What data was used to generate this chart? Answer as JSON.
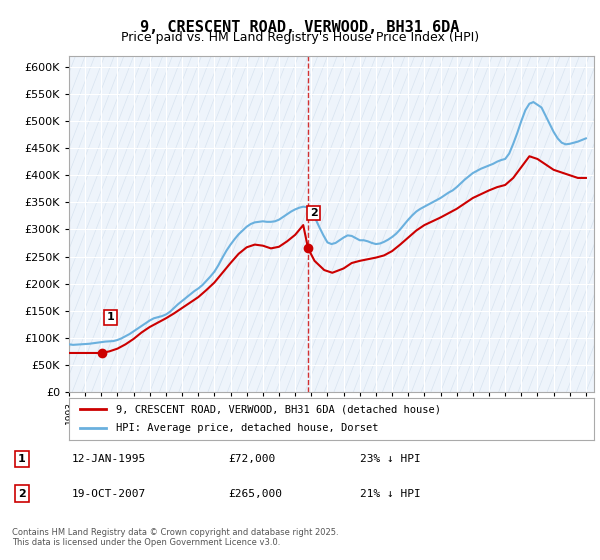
{
  "title_line1": "9, CRESCENT ROAD, VERWOOD, BH31 6DA",
  "title_line2": "Price paid vs. HM Land Registry's House Price Index (HPI)",
  "ylabel": "",
  "ylim": [
    0,
    620000
  ],
  "yticks": [
    0,
    50000,
    100000,
    150000,
    200000,
    250000,
    300000,
    350000,
    400000,
    450000,
    500000,
    550000,
    600000
  ],
  "hpi_color": "#6ab0de",
  "price_color": "#cc0000",
  "dashed_line_color": "#cc0000",
  "background_plot": "#eef4fb",
  "background_fig": "#ffffff",
  "grid_color": "#ffffff",
  "annotation1": {
    "label": "1",
    "date_str": "12-JAN-1995",
    "price": 72000,
    "note": "23% ↓ HPI",
    "x_year": 1995.03
  },
  "annotation2": {
    "label": "2",
    "date_str": "19-OCT-2007",
    "price": 265000,
    "note": "21% ↓ HPI",
    "x_year": 2007.8
  },
  "legend_label_red": "9, CRESCENT ROAD, VERWOOD, BH31 6DA (detached house)",
  "legend_label_blue": "HPI: Average price, detached house, Dorset",
  "footer": "Contains HM Land Registry data © Crown copyright and database right 2025.\nThis data is licensed under the Open Government Licence v3.0.",
  "xmin": 1993.0,
  "xmax": 2025.5,
  "hpi_data_x": [
    1993.0,
    1993.25,
    1993.5,
    1993.75,
    1994.0,
    1994.25,
    1994.5,
    1994.75,
    1995.0,
    1995.25,
    1995.5,
    1995.75,
    1996.0,
    1996.25,
    1996.5,
    1996.75,
    1997.0,
    1997.25,
    1997.5,
    1997.75,
    1998.0,
    1998.25,
    1998.5,
    1998.75,
    1999.0,
    1999.25,
    1999.5,
    1999.75,
    2000.0,
    2000.25,
    2000.5,
    2000.75,
    2001.0,
    2001.25,
    2001.5,
    2001.75,
    2002.0,
    2002.25,
    2002.5,
    2002.75,
    2003.0,
    2003.25,
    2003.5,
    2003.75,
    2004.0,
    2004.25,
    2004.5,
    2004.75,
    2005.0,
    2005.25,
    2005.5,
    2005.75,
    2006.0,
    2006.25,
    2006.5,
    2006.75,
    2007.0,
    2007.25,
    2007.5,
    2007.75,
    2008.0,
    2008.25,
    2008.5,
    2008.75,
    2009.0,
    2009.25,
    2009.5,
    2009.75,
    2010.0,
    2010.25,
    2010.5,
    2010.75,
    2011.0,
    2011.25,
    2011.5,
    2011.75,
    2012.0,
    2012.25,
    2012.5,
    2012.75,
    2013.0,
    2013.25,
    2013.5,
    2013.75,
    2014.0,
    2014.25,
    2014.5,
    2014.75,
    2015.0,
    2015.25,
    2015.5,
    2015.75,
    2016.0,
    2016.25,
    2016.5,
    2016.75,
    2017.0,
    2017.25,
    2017.5,
    2017.75,
    2018.0,
    2018.25,
    2018.5,
    2018.75,
    2019.0,
    2019.25,
    2019.5,
    2019.75,
    2020.0,
    2020.25,
    2020.5,
    2020.75,
    2021.0,
    2021.25,
    2021.5,
    2021.75,
    2022.0,
    2022.25,
    2022.5,
    2022.75,
    2023.0,
    2023.25,
    2023.5,
    2023.75,
    2024.0,
    2024.25,
    2024.5,
    2024.75,
    2025.0
  ],
  "hpi_data_y": [
    88000,
    87000,
    87500,
    88000,
    88500,
    89000,
    90000,
    91000,
    92000,
    93000,
    93500,
    94000,
    96000,
    99000,
    103000,
    107000,
    112000,
    117000,
    122000,
    127000,
    132000,
    136000,
    138000,
    140000,
    143000,
    148000,
    155000,
    162000,
    168000,
    174000,
    180000,
    186000,
    191000,
    197000,
    205000,
    213000,
    222000,
    234000,
    248000,
    261000,
    272000,
    282000,
    291000,
    298000,
    305000,
    310000,
    313000,
    314000,
    315000,
    314000,
    314000,
    315000,
    318000,
    323000,
    328000,
    333000,
    337000,
    340000,
    342000,
    341000,
    334000,
    320000,
    304000,
    289000,
    276000,
    273000,
    275000,
    280000,
    285000,
    289000,
    288000,
    284000,
    280000,
    280000,
    278000,
    275000,
    273000,
    274000,
    277000,
    281000,
    286000,
    292000,
    300000,
    309000,
    318000,
    326000,
    333000,
    338000,
    342000,
    346000,
    350000,
    354000,
    358000,
    363000,
    368000,
    372000,
    378000,
    385000,
    392000,
    398000,
    404000,
    408000,
    412000,
    415000,
    418000,
    421000,
    425000,
    428000,
    430000,
    440000,
    458000,
    478000,
    500000,
    520000,
    532000,
    535000,
    530000,
    525000,
    510000,
    495000,
    480000,
    468000,
    460000,
    457000,
    458000,
    460000,
    462000,
    465000,
    468000
  ],
  "price_data_x": [
    1993.0,
    1993.5,
    1994.0,
    1994.5,
    1995.03,
    1995.5,
    1996.0,
    1996.5,
    1997.0,
    1997.5,
    1998.0,
    1998.5,
    1999.0,
    1999.5,
    2000.0,
    2000.5,
    2001.0,
    2001.5,
    2002.0,
    2002.5,
    2003.0,
    2003.5,
    2004.0,
    2004.5,
    2005.0,
    2005.5,
    2006.0,
    2006.5,
    2007.0,
    2007.5,
    2007.8,
    2008.2,
    2008.8,
    2009.3,
    2010.0,
    2010.5,
    2011.0,
    2011.5,
    2012.0,
    2012.5,
    2013.0,
    2013.5,
    2014.0,
    2014.5,
    2015.0,
    2015.5,
    2016.0,
    2016.5,
    2017.0,
    2017.5,
    2018.0,
    2018.5,
    2019.0,
    2019.5,
    2020.0,
    2020.5,
    2021.0,
    2021.5,
    2022.0,
    2022.5,
    2023.0,
    2023.5,
    2024.0,
    2024.5,
    2025.0
  ],
  "price_data_y": [
    72000,
    72000,
    72000,
    72000,
    72000,
    75000,
    80000,
    88000,
    98000,
    110000,
    120000,
    128000,
    136000,
    145000,
    155000,
    165000,
    175000,
    188000,
    202000,
    220000,
    238000,
    255000,
    267000,
    272000,
    270000,
    265000,
    268000,
    278000,
    290000,
    308000,
    265000,
    242000,
    225000,
    220000,
    228000,
    238000,
    242000,
    245000,
    248000,
    252000,
    260000,
    272000,
    285000,
    298000,
    308000,
    315000,
    322000,
    330000,
    338000,
    348000,
    358000,
    365000,
    372000,
    378000,
    382000,
    395000,
    415000,
    435000,
    430000,
    420000,
    410000,
    405000,
    400000,
    395000,
    395000
  ]
}
